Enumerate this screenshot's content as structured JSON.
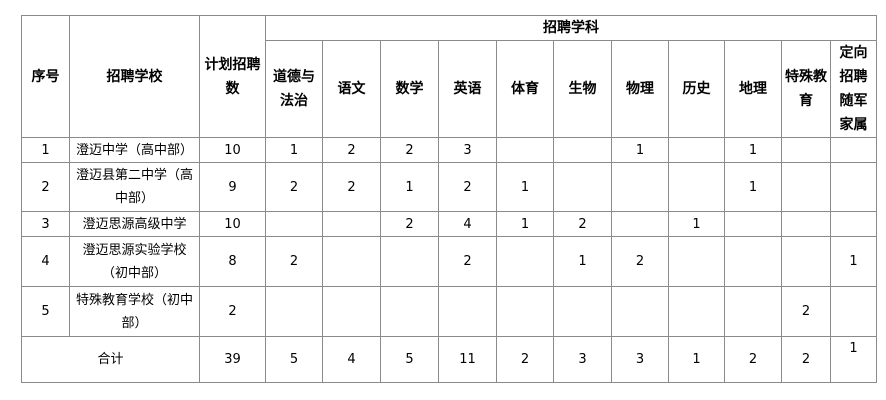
{
  "header": {
    "seq": "序号",
    "school": "招聘学校",
    "planned": "计划招聘数",
    "group": "招聘学科",
    "subjects": [
      "道德与法治",
      "语文",
      "数学",
      "英语",
      "体育",
      "生物",
      "物理",
      "历史",
      "地理",
      "特殊教育",
      "定向招聘随军家属"
    ]
  },
  "rows": [
    {
      "seq": "1",
      "school": "澄迈中学（高中部）",
      "planned": "10",
      "values": [
        "1",
        "2",
        "2",
        "3",
        "",
        "",
        "1",
        "",
        "1",
        "",
        ""
      ]
    },
    {
      "seq": "2",
      "school": "澄迈县第二中学（高中部）",
      "planned": "9",
      "values": [
        "2",
        "2",
        "1",
        "2",
        "1",
        "",
        "",
        "",
        "1",
        "",
        ""
      ]
    },
    {
      "seq": "3",
      "school": "澄迈思源高级中学",
      "planned": "10",
      "values": [
        "",
        "",
        "2",
        "4",
        "1",
        "2",
        "",
        "1",
        "",
        "",
        ""
      ]
    },
    {
      "seq": "4",
      "school": "澄迈思源实验学校（初中部）",
      "planned": "8",
      "values": [
        "2",
        "",
        "",
        "2",
        "",
        "1",
        "2",
        "",
        "",
        "",
        "1"
      ]
    },
    {
      "seq": "5",
      "school": "特殊教育学校（初中部）",
      "planned": "2",
      "values": [
        "",
        "",
        "",
        "",
        "",
        "",
        "",
        "",
        "",
        "2",
        ""
      ]
    }
  ],
  "total": {
    "label": "合计",
    "planned": "39",
    "values": [
      "5",
      "4",
      "5",
      "11",
      "2",
      "3",
      "3",
      "1",
      "2",
      "2",
      "1"
    ]
  }
}
